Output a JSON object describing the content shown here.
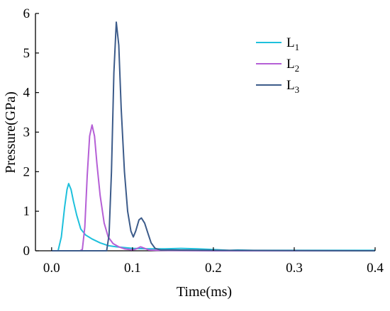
{
  "chart_data": {
    "type": "line",
    "xlabel": "Time(ms)",
    "ylabel": "Pressure(GPa)",
    "xlim": [
      -0.02,
      0.4
    ],
    "ylim": [
      0,
      6
    ],
    "x_ticks": [
      0.0,
      0.1,
      0.2,
      0.3,
      0.4
    ],
    "x_tick_labels": [
      "0.0",
      "0.1",
      "0.2",
      "0.3",
      "0.4"
    ],
    "y_ticks": [
      0,
      1,
      2,
      3,
      4,
      5,
      6
    ],
    "y_tick_labels": [
      "0",
      "1",
      "2",
      "3",
      "4",
      "5",
      "6"
    ],
    "grid": false,
    "legend_position": "top-right",
    "series": [
      {
        "name": "L",
        "subscript": "1",
        "color": "#1ec0dc",
        "points": [
          [
            0.0,
            0.0
          ],
          [
            0.008,
            0.0
          ],
          [
            0.012,
            0.35
          ],
          [
            0.016,
            1.1
          ],
          [
            0.019,
            1.55
          ],
          [
            0.021,
            1.7
          ],
          [
            0.024,
            1.55
          ],
          [
            0.027,
            1.25
          ],
          [
            0.031,
            0.9
          ],
          [
            0.036,
            0.55
          ],
          [
            0.042,
            0.4
          ],
          [
            0.05,
            0.3
          ],
          [
            0.06,
            0.2
          ],
          [
            0.07,
            0.13
          ],
          [
            0.08,
            0.1
          ],
          [
            0.09,
            0.08
          ],
          [
            0.1,
            0.06
          ],
          [
            0.12,
            0.05
          ],
          [
            0.14,
            0.05
          ],
          [
            0.16,
            0.06
          ],
          [
            0.18,
            0.05
          ],
          [
            0.2,
            0.03
          ],
          [
            0.22,
            0.01
          ],
          [
            0.23,
            0.02
          ],
          [
            0.25,
            0.01
          ],
          [
            0.3,
            0.01
          ],
          [
            0.4,
            0.01
          ]
        ]
      },
      {
        "name": "L",
        "subscript": "2",
        "color": "#b55fd6",
        "points": [
          [
            0.0,
            0.0
          ],
          [
            0.035,
            0.0
          ],
          [
            0.038,
            0.03
          ],
          [
            0.041,
            0.6
          ],
          [
            0.044,
            1.9
          ],
          [
            0.047,
            2.9
          ],
          [
            0.05,
            3.18
          ],
          [
            0.053,
            2.9
          ],
          [
            0.056,
            2.2
          ],
          [
            0.06,
            1.4
          ],
          [
            0.065,
            0.7
          ],
          [
            0.07,
            0.35
          ],
          [
            0.076,
            0.18
          ],
          [
            0.083,
            0.1
          ],
          [
            0.09,
            0.05
          ],
          [
            0.1,
            0.02
          ],
          [
            0.105,
            0.05
          ],
          [
            0.11,
            0.1
          ],
          [
            0.115,
            0.06
          ],
          [
            0.12,
            0.02
          ],
          [
            0.13,
            0.01
          ],
          [
            0.2,
            0.0
          ],
          [
            0.4,
            0.0
          ]
        ]
      },
      {
        "name": "L",
        "subscript": "3",
        "color": "#3c5b8a",
        "points": [
          [
            0.0,
            0.0
          ],
          [
            0.068,
            0.0
          ],
          [
            0.071,
            0.4
          ],
          [
            0.074,
            2.0
          ],
          [
            0.077,
            4.5
          ],
          [
            0.08,
            5.78
          ],
          [
            0.083,
            5.2
          ],
          [
            0.086,
            3.6
          ],
          [
            0.09,
            2.0
          ],
          [
            0.094,
            1.0
          ],
          [
            0.098,
            0.5
          ],
          [
            0.101,
            0.35
          ],
          [
            0.104,
            0.5
          ],
          [
            0.108,
            0.78
          ],
          [
            0.111,
            0.83
          ],
          [
            0.115,
            0.7
          ],
          [
            0.119,
            0.45
          ],
          [
            0.123,
            0.2
          ],
          [
            0.128,
            0.06
          ],
          [
            0.135,
            0.02
          ],
          [
            0.15,
            0.02
          ],
          [
            0.2,
            0.01
          ],
          [
            0.4,
            0.0
          ]
        ]
      }
    ]
  }
}
